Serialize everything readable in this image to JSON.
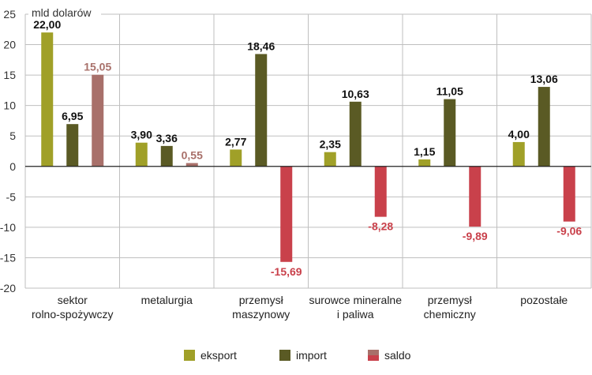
{
  "chart_data": {
    "type": "bar",
    "unit_label": "mld dolarów",
    "categories": [
      [
        "sektor",
        "rolno-spożywczy"
      ],
      [
        "metalurgia"
      ],
      [
        "przemysł",
        "maszynowy"
      ],
      [
        "surowce mineralne",
        "i paliwa"
      ],
      [
        "przemysł",
        "chemiczny"
      ],
      [
        "pozostałe"
      ]
    ],
    "series": [
      {
        "name": "eksport",
        "color": "#a0a028",
        "values": [
          22.0,
          3.9,
          2.77,
          2.35,
          1.15,
          4.0
        ],
        "labels": [
          "22,00",
          "3,90",
          "2,77",
          "2,35",
          "1,15",
          "4,00"
        ]
      },
      {
        "name": "import",
        "color": "#5a5a24",
        "values": [
          6.95,
          3.36,
          18.46,
          10.63,
          11.05,
          13.06
        ],
        "labels": [
          "6,95",
          "3,36",
          "18,46",
          "10,63",
          "11,05",
          "13,06"
        ]
      },
      {
        "name": "saldo",
        "color_positive": "#a8706a",
        "color_negative": "#c9414b",
        "values": [
          15.05,
          0.55,
          -15.69,
          -8.28,
          -9.89,
          -9.06
        ],
        "labels": [
          "15,05",
          "0,55",
          "-15,69",
          "-8,28",
          "-9,89",
          "-9,06"
        ]
      }
    ],
    "ylim": [
      -20,
      25
    ],
    "yticks": [
      25,
      20,
      15,
      10,
      5,
      0,
      -5,
      -10,
      -15,
      -20
    ],
    "ytick_labels": [
      "25",
      "20",
      "15",
      "10",
      "5",
      "0",
      "-5",
      "-10",
      "-15",
      "-20"
    ],
    "legend": {
      "position": "bottom-center",
      "items": [
        "eksport",
        "import",
        "saldo"
      ]
    }
  }
}
